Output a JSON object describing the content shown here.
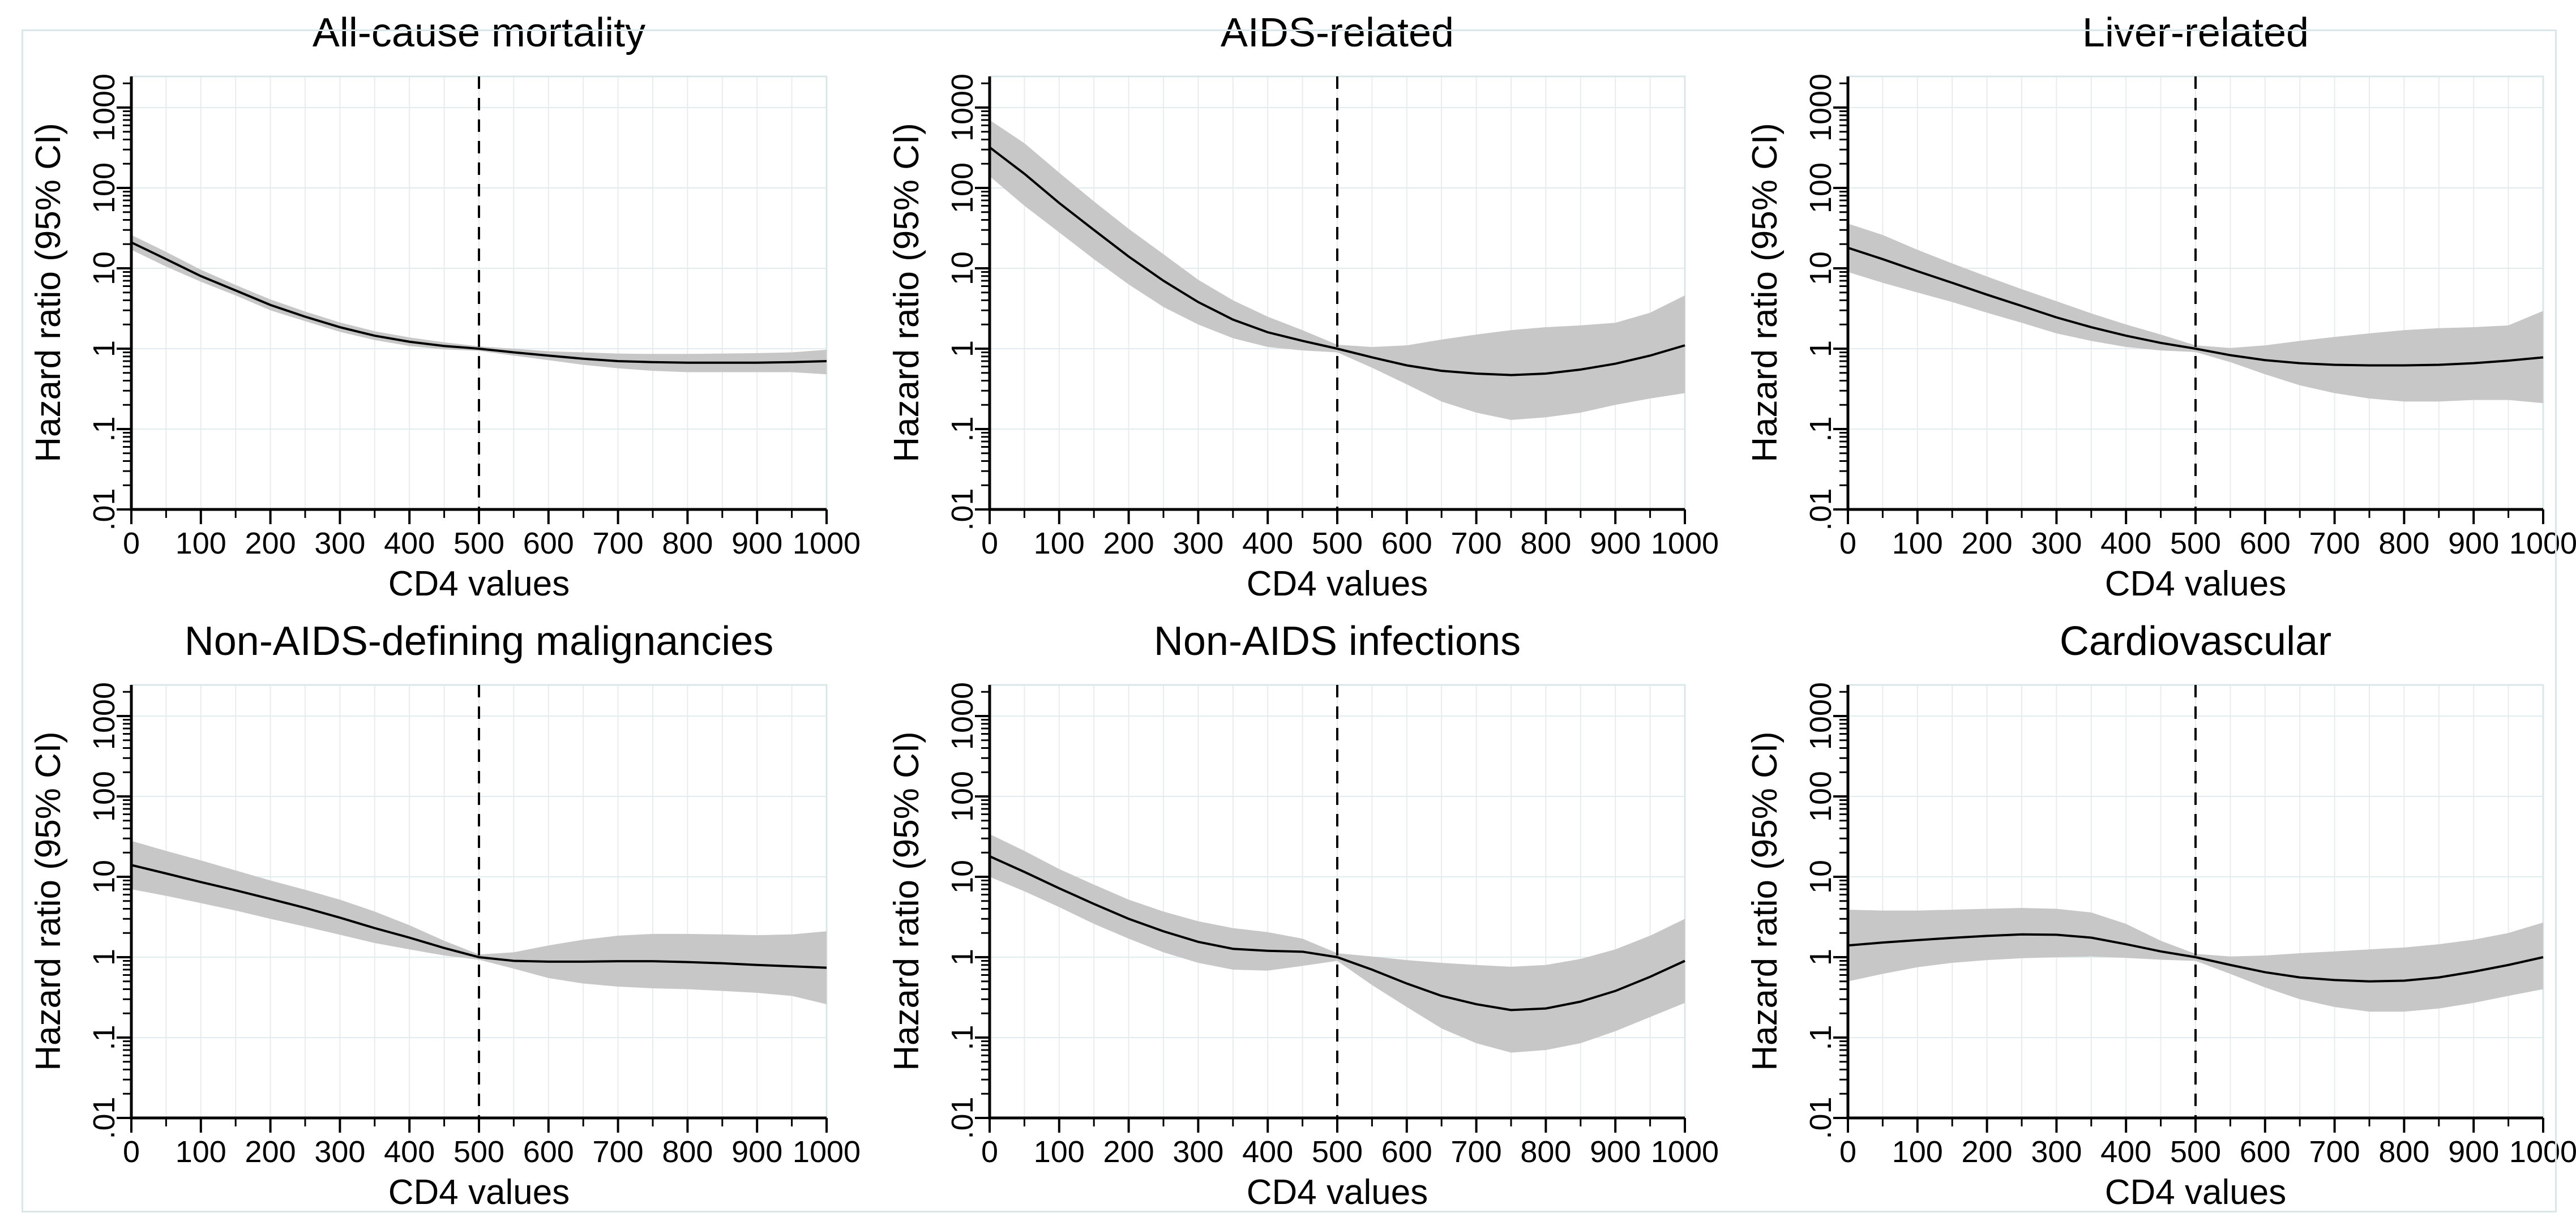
{
  "figure": {
    "background": "#ffffff",
    "colors": {
      "band": "#c7c7c7",
      "line": "#000000",
      "grid_v": "#e9eced",
      "grid_h": "#e2ecef",
      "plot_border": "#dbe6e9",
      "outer_border": "#dbe6e9",
      "axis": "#000000"
    },
    "x_ticks": [
      0,
      100,
      200,
      300,
      400,
      500,
      600,
      700,
      800,
      900,
      1000
    ],
    "x_minor_ticks": [
      50,
      150,
      250,
      350,
      450,
      550,
      650,
      750,
      850,
      950
    ],
    "x_grid": [
      0,
      50,
      100,
      150,
      200,
      250,
      300,
      350,
      400,
      450,
      500,
      550,
      600,
      650,
      700,
      750,
      800,
      850,
      900,
      950,
      1000
    ],
    "y_ticks": [
      0.01,
      0.1,
      1,
      10,
      100,
      1000
    ],
    "y_tick_labels": [
      ".01",
      ".1",
      "1",
      "10",
      "100",
      "1000"
    ],
    "ref_line_x": 500
  },
  "chart_data": [
    {
      "type": "line",
      "title": "All-cause mortality",
      "xlabel": "CD4 values",
      "ylabel": "Hazard ratio (95% CI)",
      "yscale": "log",
      "xlim": [
        0,
        1000
      ],
      "ylim": [
        0.01,
        1000
      ],
      "legend": "none",
      "grid": true,
      "ref_line_x": 500,
      "x": [
        0,
        50,
        100,
        150,
        200,
        250,
        300,
        350,
        400,
        450,
        500,
        550,
        600,
        650,
        700,
        750,
        800,
        850,
        900,
        950,
        1000
      ],
      "series": [
        {
          "name": "Hazard ratio",
          "values": [
            21,
            13,
            8.0,
            5.3,
            3.5,
            2.5,
            1.85,
            1.45,
            1.22,
            1.08,
            1.0,
            0.9,
            0.82,
            0.75,
            0.7,
            0.68,
            0.67,
            0.67,
            0.67,
            0.68,
            0.7
          ]
        },
        {
          "name": "95% CI lower",
          "values": [
            17,
            10.5,
            6.8,
            4.6,
            3.0,
            2.2,
            1.62,
            1.28,
            1.08,
            0.98,
            0.94,
            0.82,
            0.72,
            0.63,
            0.57,
            0.53,
            0.51,
            0.51,
            0.51,
            0.51,
            0.48
          ]
        },
        {
          "name": "95% CI upper",
          "values": [
            26,
            16,
            9.6,
            6.2,
            4.1,
            2.9,
            2.12,
            1.65,
            1.38,
            1.2,
            1.07,
            1.0,
            0.93,
            0.9,
            0.87,
            0.86,
            0.86,
            0.87,
            0.88,
            0.9,
            0.97
          ]
        }
      ]
    },
    {
      "type": "line",
      "title": "AIDS-related",
      "xlabel": "CD4 values",
      "ylabel": "Hazard ratio (95% CI)",
      "yscale": "log",
      "xlim": [
        0,
        1000
      ],
      "ylim": [
        0.01,
        1000
      ],
      "legend": "none",
      "grid": true,
      "ref_line_x": 500,
      "x": [
        0,
        50,
        100,
        150,
        200,
        250,
        300,
        350,
        400,
        450,
        500,
        550,
        600,
        650,
        700,
        750,
        800,
        850,
        900,
        950,
        1000
      ],
      "series": [
        {
          "name": "Hazard ratio",
          "values": [
            320,
            150,
            65,
            30,
            14,
            7.0,
            3.8,
            2.3,
            1.6,
            1.25,
            1.0,
            0.78,
            0.62,
            0.53,
            0.49,
            0.47,
            0.49,
            0.55,
            0.65,
            0.82,
            1.1
          ]
        },
        {
          "name": "95% CI lower",
          "values": [
            140,
            60,
            28,
            13,
            6.3,
            3.3,
            2.0,
            1.35,
            1.05,
            0.95,
            0.9,
            0.58,
            0.36,
            0.22,
            0.16,
            0.13,
            0.14,
            0.16,
            0.2,
            0.24,
            0.28
          ]
        },
        {
          "name": "95% CI upper",
          "values": [
            700,
            360,
            155,
            68,
            31,
            15,
            7.2,
            4.0,
            2.5,
            1.7,
            1.12,
            1.05,
            1.1,
            1.3,
            1.5,
            1.7,
            1.85,
            1.95,
            2.1,
            2.8,
            4.6
          ]
        }
      ]
    },
    {
      "type": "line",
      "title": "Liver-related",
      "xlabel": "CD4 values",
      "ylabel": "Hazard ratio (95% CI)",
      "yscale": "log",
      "xlim": [
        0,
        1000
      ],
      "ylim": [
        0.01,
        1000
      ],
      "legend": "none",
      "grid": true,
      "ref_line_x": 500,
      "x": [
        0,
        50,
        100,
        150,
        200,
        250,
        300,
        350,
        400,
        450,
        500,
        550,
        600,
        650,
        700,
        750,
        800,
        850,
        900,
        950,
        1000
      ],
      "series": [
        {
          "name": "Hazard ratio",
          "values": [
            18,
            13,
            9.2,
            6.6,
            4.7,
            3.4,
            2.45,
            1.85,
            1.45,
            1.18,
            1.0,
            0.83,
            0.72,
            0.66,
            0.63,
            0.62,
            0.62,
            0.63,
            0.66,
            0.71,
            0.78
          ]
        },
        {
          "name": "95% CI lower",
          "values": [
            9.0,
            6.6,
            5.0,
            3.8,
            2.8,
            2.1,
            1.55,
            1.25,
            1.05,
            0.95,
            0.91,
            0.68,
            0.48,
            0.35,
            0.28,
            0.24,
            0.22,
            0.22,
            0.23,
            0.23,
            0.21
          ]
        },
        {
          "name": "95% CI upper",
          "values": [
            36,
            26,
            17,
            11.5,
            7.9,
            5.5,
            3.9,
            2.75,
            2.0,
            1.5,
            1.1,
            1.02,
            1.1,
            1.25,
            1.4,
            1.55,
            1.7,
            1.8,
            1.85,
            1.95,
            2.95
          ]
        }
      ]
    },
    {
      "type": "line",
      "title": "Non-AIDS-defining malignancies",
      "xlabel": "CD4 values",
      "ylabel": "Hazard ratio (95% CI)",
      "yscale": "log",
      "xlim": [
        0,
        1000
      ],
      "ylim": [
        0.01,
        1000
      ],
      "legend": "none",
      "grid": true,
      "ref_line_x": 500,
      "x": [
        0,
        50,
        100,
        150,
        200,
        250,
        300,
        350,
        400,
        450,
        500,
        550,
        600,
        650,
        700,
        750,
        800,
        850,
        900,
        950,
        1000
      ],
      "series": [
        {
          "name": "Hazard ratio",
          "values": [
            14,
            11,
            8.6,
            6.8,
            5.3,
            4.1,
            3.1,
            2.3,
            1.75,
            1.3,
            1.0,
            0.9,
            0.88,
            0.88,
            0.89,
            0.89,
            0.87,
            0.84,
            0.8,
            0.77,
            0.74
          ]
        },
        {
          "name": "95% CI lower",
          "values": [
            7.0,
            5.8,
            4.7,
            3.8,
            3.0,
            2.4,
            1.9,
            1.5,
            1.25,
            1.05,
            0.93,
            0.72,
            0.55,
            0.47,
            0.43,
            0.41,
            0.4,
            0.38,
            0.36,
            0.33,
            0.26
          ]
        },
        {
          "name": "95% CI upper",
          "values": [
            28,
            21,
            16,
            12,
            9.0,
            6.9,
            5.2,
            3.7,
            2.5,
            1.6,
            1.08,
            1.15,
            1.4,
            1.65,
            1.85,
            1.95,
            1.95,
            1.92,
            1.88,
            1.92,
            2.1
          ]
        }
      ]
    },
    {
      "type": "line",
      "title": "Non-AIDS infections",
      "xlabel": "CD4 values",
      "ylabel": "Hazard ratio (95% CI)",
      "yscale": "log",
      "xlim": [
        0,
        1000
      ],
      "ylim": [
        0.01,
        1000
      ],
      "legend": "none",
      "grid": true,
      "ref_line_x": 500,
      "x": [
        0,
        50,
        100,
        150,
        200,
        250,
        300,
        350,
        400,
        450,
        500,
        550,
        600,
        650,
        700,
        750,
        800,
        850,
        900,
        950,
        1000
      ],
      "series": [
        {
          "name": "Hazard ratio",
          "values": [
            18,
            11.5,
            7.2,
            4.6,
            3.0,
            2.1,
            1.55,
            1.27,
            1.2,
            1.17,
            1.0,
            0.7,
            0.47,
            0.33,
            0.26,
            0.22,
            0.23,
            0.28,
            0.38,
            0.57,
            0.9
          ]
        },
        {
          "name": "95% CI lower",
          "values": [
            10,
            6.6,
            4.2,
            2.6,
            1.7,
            1.15,
            0.85,
            0.7,
            0.68,
            0.78,
            0.9,
            0.45,
            0.24,
            0.13,
            0.085,
            0.065,
            0.07,
            0.085,
            0.12,
            0.18,
            0.27
          ]
        },
        {
          "name": "95% CI upper",
          "values": [
            34,
            21,
            12.5,
            8.0,
            5.2,
            3.7,
            2.8,
            2.3,
            2.05,
            1.7,
            1.12,
            1.02,
            0.92,
            0.85,
            0.8,
            0.76,
            0.8,
            0.95,
            1.25,
            1.85,
            3.0
          ]
        }
      ]
    },
    {
      "type": "line",
      "title": "Cardiovascular",
      "xlabel": "CD4 values",
      "ylabel": "Hazard ratio (95% CI)",
      "yscale": "log",
      "xlim": [
        0,
        1000
      ],
      "ylim": [
        0.01,
        1000
      ],
      "legend": "none",
      "grid": true,
      "ref_line_x": 500,
      "x": [
        0,
        50,
        100,
        150,
        200,
        250,
        300,
        350,
        400,
        450,
        500,
        550,
        600,
        650,
        700,
        750,
        800,
        850,
        900,
        950,
        1000
      ],
      "series": [
        {
          "name": "Hazard ratio",
          "values": [
            1.4,
            1.52,
            1.63,
            1.74,
            1.84,
            1.92,
            1.9,
            1.75,
            1.45,
            1.18,
            1.0,
            0.8,
            0.65,
            0.56,
            0.52,
            0.5,
            0.51,
            0.56,
            0.66,
            0.8,
            1.0
          ]
        },
        {
          "name": "95% CI lower",
          "values": [
            0.5,
            0.62,
            0.75,
            0.85,
            0.92,
            0.97,
            1.0,
            1.02,
            0.98,
            0.93,
            0.9,
            0.62,
            0.42,
            0.3,
            0.24,
            0.21,
            0.21,
            0.23,
            0.27,
            0.33,
            0.4
          ]
        },
        {
          "name": "95% CI upper",
          "values": [
            3.9,
            3.8,
            3.8,
            3.9,
            4.0,
            4.1,
            4.0,
            3.6,
            2.6,
            1.6,
            1.1,
            1.02,
            1.05,
            1.12,
            1.18,
            1.25,
            1.32,
            1.45,
            1.65,
            2.0,
            2.7
          ]
        }
      ]
    }
  ]
}
